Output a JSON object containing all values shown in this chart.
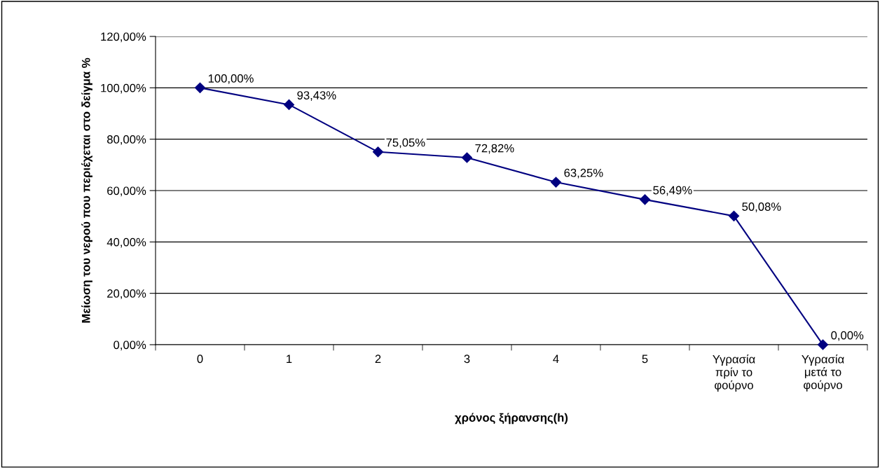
{
  "chart_data": {
    "type": "line",
    "xlabel": "χρόνος ξήρανσης(h)",
    "ylabel": "Μείωση του νερού που περιέχεται στο δείγμα %",
    "categories": [
      "0",
      "1",
      "2",
      "3",
      "4",
      "5",
      "Υγρασία\nπρίν το\nφούρνο",
      "Υγρασία\nμετά το\nφούρνο"
    ],
    "series": [
      {
        "color": "#000080",
        "values": [
          100.0,
          93.43,
          75.05,
          72.82,
          63.25,
          56.49,
          50.08,
          0.0
        ],
        "value_labels": [
          "100,00%",
          "93,43%",
          "75,05%",
          "72,82%",
          "63,25%",
          "56,49%",
          "50,08%",
          "0,00%"
        ]
      }
    ],
    "ylim": [
      0,
      120
    ],
    "yticks": [
      {
        "value": 0,
        "label": "0,00%"
      },
      {
        "value": 20,
        "label": "20,00%"
      },
      {
        "value": 40,
        "label": "40,00%"
      },
      {
        "value": 60,
        "label": "60,00%"
      },
      {
        "value": 80,
        "label": "80,00%"
      },
      {
        "value": 100,
        "label": "100,00%"
      },
      {
        "value": 120,
        "label": "120,00%"
      }
    ],
    "grid": "y",
    "marker": "diamond",
    "line_style": "solid",
    "legend": false
  }
}
